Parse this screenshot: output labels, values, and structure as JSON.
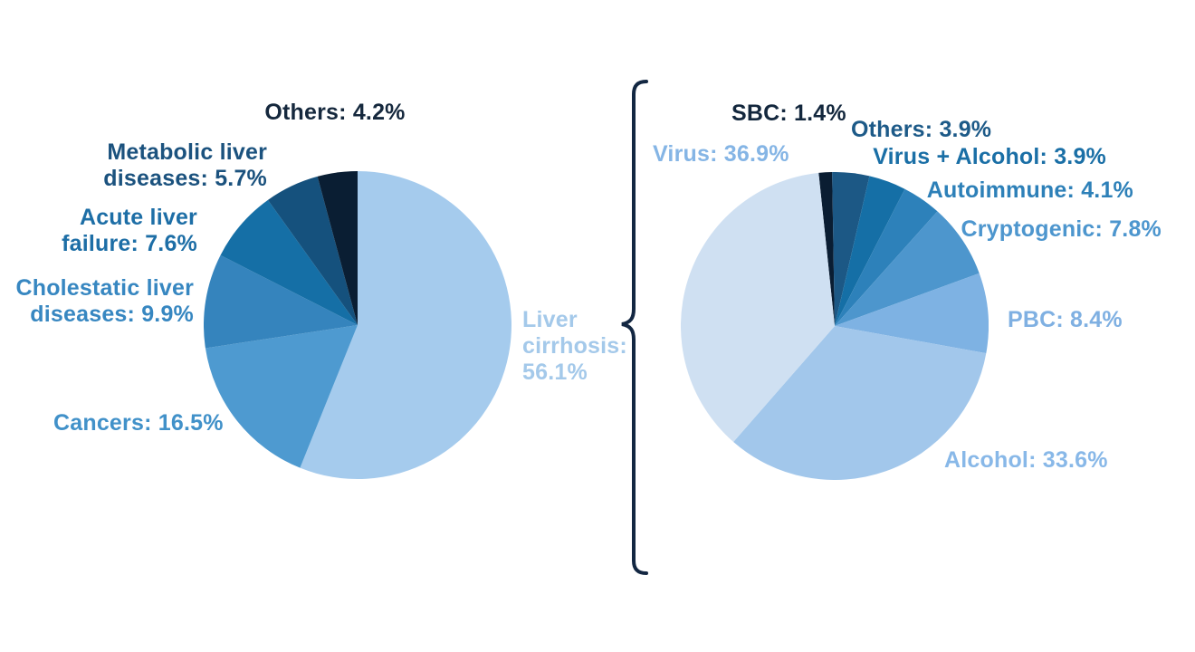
{
  "page": {
    "background": "#ffffff"
  },
  "connector": {
    "shape": "curly-brace",
    "color": "#132742"
  },
  "chart_data": [
    {
      "type": "pie",
      "name": "liver-transplant-indications",
      "start_angle": 0,
      "direction": "clockwise",
      "legend_position": "around-labels",
      "categories": [
        "Liver cirrhosis",
        "Cancers",
        "Cholestatic liver diseases",
        "Acute liver failure",
        "Metabolic liver diseases",
        "Others"
      ],
      "values": [
        56.1,
        16.5,
        9.9,
        7.6,
        5.7,
        4.2
      ],
      "colors": [
        "#a5cbed",
        "#4e9ad0",
        "#3584bd",
        "#156fa6",
        "#15517d",
        "#0a1e33"
      ],
      "labels": [
        {
          "text": "Liver\ncirrhosis:\n56.1%",
          "color": "#a4c9ea"
        },
        {
          "text": "Cancers: 16.5%",
          "color": "#4191c9"
        },
        {
          "text": "Cholestatic liver\ndiseases: 9.9%",
          "color": "#3787c1"
        },
        {
          "text": "Acute liver\nfailure: 7.6%",
          "color": "#1d6ea6"
        },
        {
          "text": "Metabolic liver\ndiseases: 5.7%",
          "color": "#1b527e"
        },
        {
          "text": "Others: 4.2%",
          "color": "#15283d"
        }
      ]
    },
    {
      "type": "pie",
      "name": "liver-cirrhosis-etiology",
      "start_angle": -6,
      "direction": "clockwise",
      "legend_position": "around-labels",
      "categories": [
        "SBC",
        "Others",
        "Virus + Alcohol",
        "Autoimmune",
        "Cryptogenic",
        "PBC",
        "Alcohol",
        "Virus"
      ],
      "values": [
        1.4,
        3.9,
        3.9,
        4.1,
        7.8,
        8.4,
        33.6,
        36.9
      ],
      "colors": [
        "#0a1d32",
        "#1c5885",
        "#156fa6",
        "#2d81ba",
        "#4d96cd",
        "#7eb2e3",
        "#a2c7eb",
        "#cfe0f2"
      ],
      "labels": [
        {
          "text": "SBC: 1.4%",
          "color": "#13273d"
        },
        {
          "text": "Others: 3.9%",
          "color": "#1d5a88"
        },
        {
          "text": "Virus + Alcohol: 3.9%",
          "color": "#1a6fa6"
        },
        {
          "text": "Autoimmune: 4.1%",
          "color": "#2d80b8"
        },
        {
          "text": "Cryptogenic: 7.8%",
          "color": "#4d96ce"
        },
        {
          "text": "PBC: 8.4%",
          "color": "#7fb0e2"
        },
        {
          "text": "Alcohol: 33.6%",
          "color": "#88b8e8"
        },
        {
          "text": "Virus: 36.9%",
          "color": "#85b5e5"
        }
      ]
    }
  ]
}
